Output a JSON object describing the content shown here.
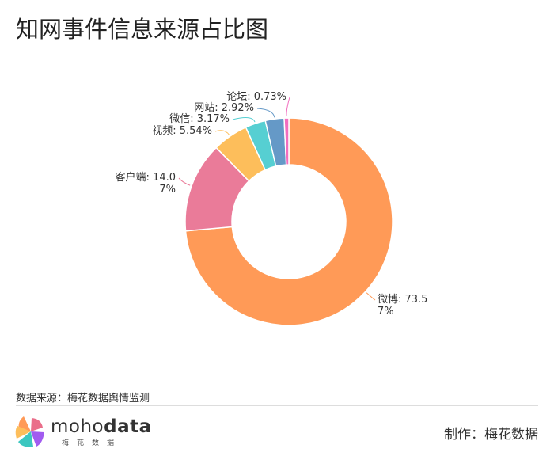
{
  "title": "知网事件信息来源占比图",
  "chart_data": {
    "type": "pie",
    "donut": true,
    "title": "知网事件信息来源占比图",
    "slices": [
      {
        "name": "微博",
        "value": 73.57,
        "label": "微博: 73.57%",
        "color": "#FF9A57"
      },
      {
        "name": "客户端",
        "value": 14.07,
        "label": "客户端: 14.07%",
        "color": "#EA7B99"
      },
      {
        "name": "视频",
        "value": 5.54,
        "label": "视频: 5.54%",
        "color": "#FDBE5B"
      },
      {
        "name": "微信",
        "value": 3.17,
        "label": "微信: 3.17%",
        "color": "#56CFD2"
      },
      {
        "name": "网站",
        "value": 2.92,
        "label": "网站: 2.92%",
        "color": "#6599C7"
      },
      {
        "name": "论坛",
        "value": 0.73,
        "label": "论坛: 0.73%",
        "color": "#F26DBF"
      }
    ]
  },
  "footer": {
    "source": "数据来源：梅花数据舆情监测",
    "logo_text_light": "moho",
    "logo_text_bold": "data",
    "logo_sub": "梅花数据",
    "maker": "制作：梅花数据"
  }
}
